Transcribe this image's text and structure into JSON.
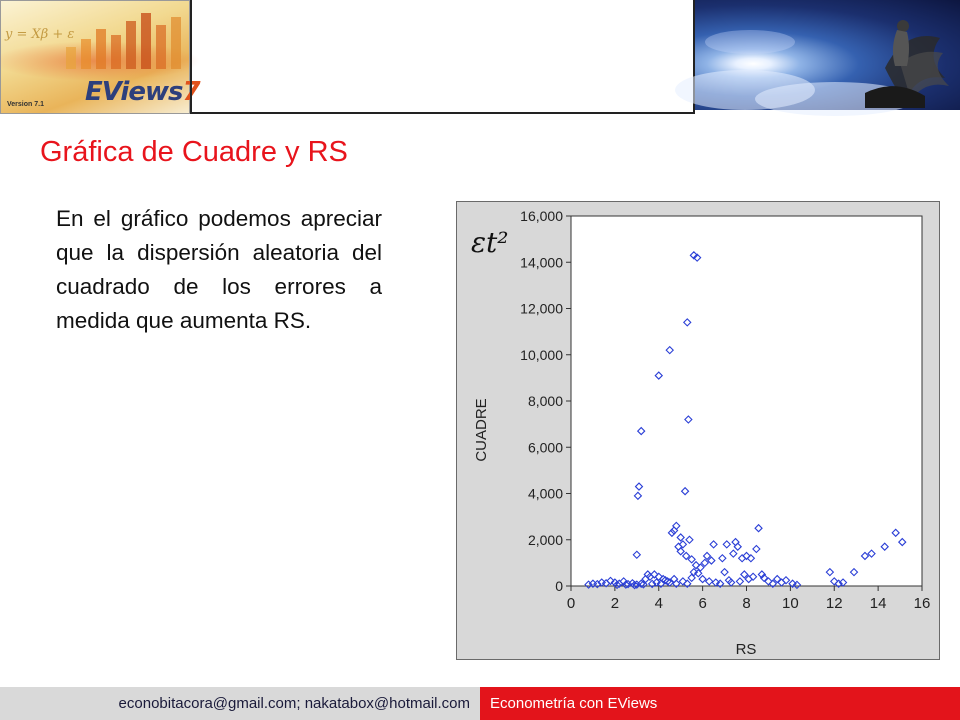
{
  "header": {
    "logo_brand": "EViews",
    "logo_brand_number": "7",
    "logo_version": "Version 7.1",
    "logo_formula": "y = Xβ + ε"
  },
  "slide": {
    "title": "Gráfica de Cuadre y RS",
    "body": "En el gráfico podemos apreciar que la dispersión aleatoria del cuadrado de los errores a medida que aumenta RS."
  },
  "footer": {
    "emails": "econobitacora@gmail.com;  nakatabox@hotmail.com",
    "course": "Econometría con EViews"
  },
  "colors": {
    "title": "#e8141c",
    "footer_right_bg": "#e3141b",
    "footer_left_bg": "#d9d9d9",
    "marker": "#2b3fd6"
  },
  "chart_data": {
    "type": "scatter",
    "title": "",
    "xlabel": "RS",
    "ylabel": "CUADRE",
    "annotation": "εt²",
    "xlim": [
      0,
      16
    ],
    "ylim": [
      0,
      16000
    ],
    "xticks": [
      0,
      2,
      4,
      6,
      8,
      10,
      12,
      14,
      16
    ],
    "yticks": [
      0,
      2000,
      4000,
      6000,
      8000,
      10000,
      12000,
      14000,
      16000
    ],
    "ytick_labels": [
      "0",
      "2,000",
      "4,000",
      "6,000",
      "8,000",
      "10,000",
      "12,000",
      "14,000",
      "16,000"
    ],
    "marker": "diamond-open",
    "grid": false,
    "points": [
      [
        5.6,
        14300
      ],
      [
        5.75,
        14200
      ],
      [
        5.3,
        11400
      ],
      [
        4.5,
        10200
      ],
      [
        4.0,
        9100
      ],
      [
        5.35,
        7200
      ],
      [
        3.2,
        6700
      ],
      [
        3.1,
        4300
      ],
      [
        3.05,
        3900
      ],
      [
        5.2,
        4100
      ],
      [
        4.8,
        2600
      ],
      [
        4.7,
        2400
      ],
      [
        4.6,
        2300
      ],
      [
        5.0,
        2100
      ],
      [
        5.4,
        2000
      ],
      [
        5.1,
        1800
      ],
      [
        4.9,
        1700
      ],
      [
        5.0,
        1500
      ],
      [
        5.25,
        1300
      ],
      [
        5.5,
        1150
      ],
      [
        3.0,
        1350
      ],
      [
        6.2,
        1300
      ],
      [
        6.4,
        1100
      ],
      [
        6.5,
        1800
      ],
      [
        7.1,
        1800
      ],
      [
        7.6,
        1700
      ],
      [
        7.4,
        1400
      ],
      [
        7.8,
        1200
      ],
      [
        8.0,
        1300
      ],
      [
        8.2,
        1200
      ],
      [
        8.45,
        1600
      ],
      [
        8.55,
        2500
      ],
      [
        6.9,
        1200
      ],
      [
        7.5,
        1900
      ],
      [
        7.0,
        600
      ],
      [
        6.1,
        1000
      ],
      [
        5.9,
        800
      ],
      [
        5.7,
        900
      ],
      [
        5.6,
        600
      ],
      [
        5.8,
        550
      ],
      [
        6.0,
        300
      ],
      [
        6.3,
        200
      ],
      [
        6.6,
        150
      ],
      [
        6.8,
        100
      ],
      [
        7.2,
        250
      ],
      [
        7.3,
        150
      ],
      [
        7.7,
        200
      ],
      [
        7.9,
        500
      ],
      [
        8.1,
        300
      ],
      [
        8.3,
        400
      ],
      [
        8.7,
        500
      ],
      [
        8.8,
        350
      ],
      [
        9.0,
        200
      ],
      [
        9.2,
        100
      ],
      [
        9.4,
        300
      ],
      [
        9.6,
        150
      ],
      [
        9.8,
        250
      ],
      [
        10.1,
        100
      ],
      [
        10.3,
        50
      ],
      [
        4.0,
        400
      ],
      [
        4.2,
        300
      ],
      [
        4.4,
        200
      ],
      [
        3.8,
        500
      ],
      [
        3.6,
        400
      ],
      [
        3.4,
        300
      ],
      [
        3.5,
        500
      ],
      [
        3.9,
        150
      ],
      [
        4.1,
        100
      ],
      [
        4.3,
        250
      ],
      [
        4.5,
        150
      ],
      [
        4.7,
        300
      ],
      [
        4.8,
        100
      ],
      [
        5.1,
        200
      ],
      [
        5.3,
        100
      ],
      [
        5.5,
        350
      ],
      [
        2.0,
        150
      ],
      [
        2.2,
        100
      ],
      [
        2.4,
        200
      ],
      [
        2.6,
        80
      ],
      [
        2.8,
        120
      ],
      [
        3.0,
        60
      ],
      [
        3.2,
        100
      ],
      [
        1.6,
        120
      ],
      [
        1.8,
        220
      ],
      [
        1.2,
        80
      ],
      [
        1.4,
        150
      ],
      [
        1.0,
        100
      ],
      [
        0.8,
        60
      ],
      [
        2.1,
        50
      ],
      [
        2.5,
        60
      ],
      [
        2.9,
        40
      ],
      [
        3.3,
        70
      ],
      [
        3.7,
        90
      ],
      [
        11.8,
        600
      ],
      [
        12.0,
        200
      ],
      [
        12.2,
        100
      ],
      [
        12.4,
        150
      ],
      [
        12.9,
        600
      ],
      [
        13.4,
        1300
      ],
      [
        13.7,
        1400
      ],
      [
        14.3,
        1700
      ],
      [
        14.8,
        2300
      ],
      [
        15.1,
        1900
      ]
    ]
  }
}
